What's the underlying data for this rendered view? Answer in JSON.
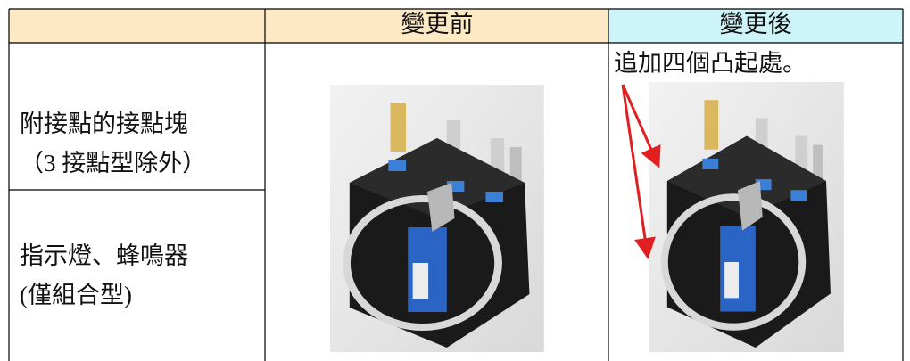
{
  "header": {
    "columns": [
      "變更前",
      "變更後"
    ]
  },
  "rows": [
    {
      "lines": [
        "附接點的接點塊",
        "（3 接點型除外）"
      ]
    },
    {
      "lines": [
        "指示燈、蜂鳴器",
        "(僅組合型)"
      ]
    }
  ],
  "note": "追加四個凸起處。"
}
